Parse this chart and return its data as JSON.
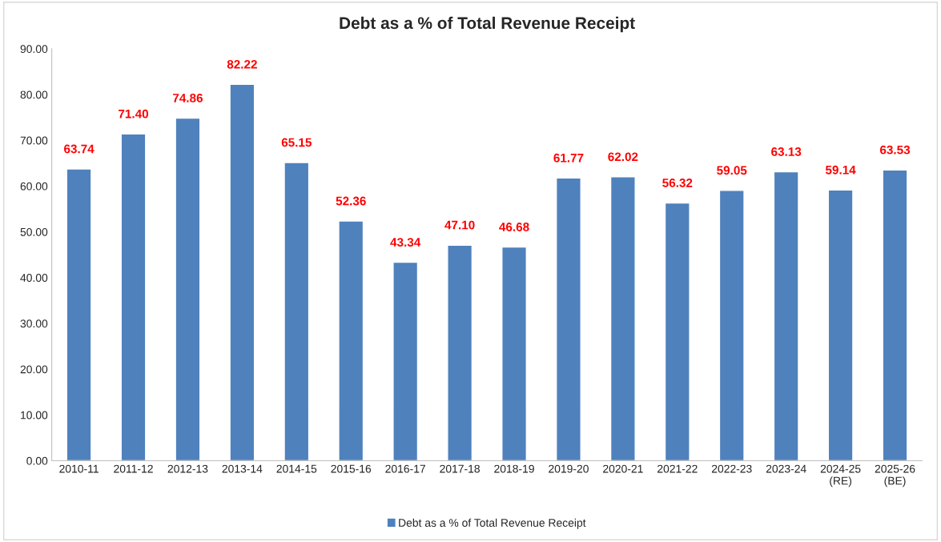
{
  "chart_data": {
    "type": "bar",
    "title": "Debt as a % of Total Revenue Receipt",
    "categories": [
      "2010-11",
      "2011-12",
      "2012-13",
      "2013-14",
      "2014-15",
      "2015-16",
      "2016-17",
      "2017-18",
      "2018-19",
      "2019-20",
      "2020-21",
      "2021-22",
      "2022-23",
      "2023-24",
      "2024-25\n(RE)",
      "2025-26\n(BE)"
    ],
    "series": [
      {
        "name": "Debt as a % of Total Revenue Receipt",
        "color": "#4f81bd",
        "values": [
          63.74,
          71.4,
          74.86,
          82.22,
          65.15,
          52.36,
          43.34,
          47.1,
          46.68,
          61.77,
          62.02,
          56.32,
          59.05,
          63.13,
          59.14,
          63.53
        ],
        "value_labels": [
          "63.74",
          "71.40",
          "74.86",
          "82.22",
          "65.15",
          "52.36",
          "43.34",
          "47.10",
          "46.68",
          "61.77",
          "62.02",
          "56.32",
          "59.05",
          "63.13",
          "59.14",
          "63.53"
        ]
      }
    ],
    "ylim": [
      0,
      90
    ],
    "yticks": [
      {
        "value": 0,
        "label": "0.00"
      },
      {
        "value": 10,
        "label": "10.00"
      },
      {
        "value": 20,
        "label": "20.00"
      },
      {
        "value": 30,
        "label": "30.00"
      },
      {
        "value": 40,
        "label": "40.00"
      },
      {
        "value": 50,
        "label": "50.00"
      },
      {
        "value": 60,
        "label": "60.00"
      },
      {
        "value": 70,
        "label": "70.00"
      },
      {
        "value": 80,
        "label": "80.00"
      },
      {
        "value": 90,
        "label": "90.00"
      }
    ],
    "grid": false,
    "legend": "bottom"
  }
}
